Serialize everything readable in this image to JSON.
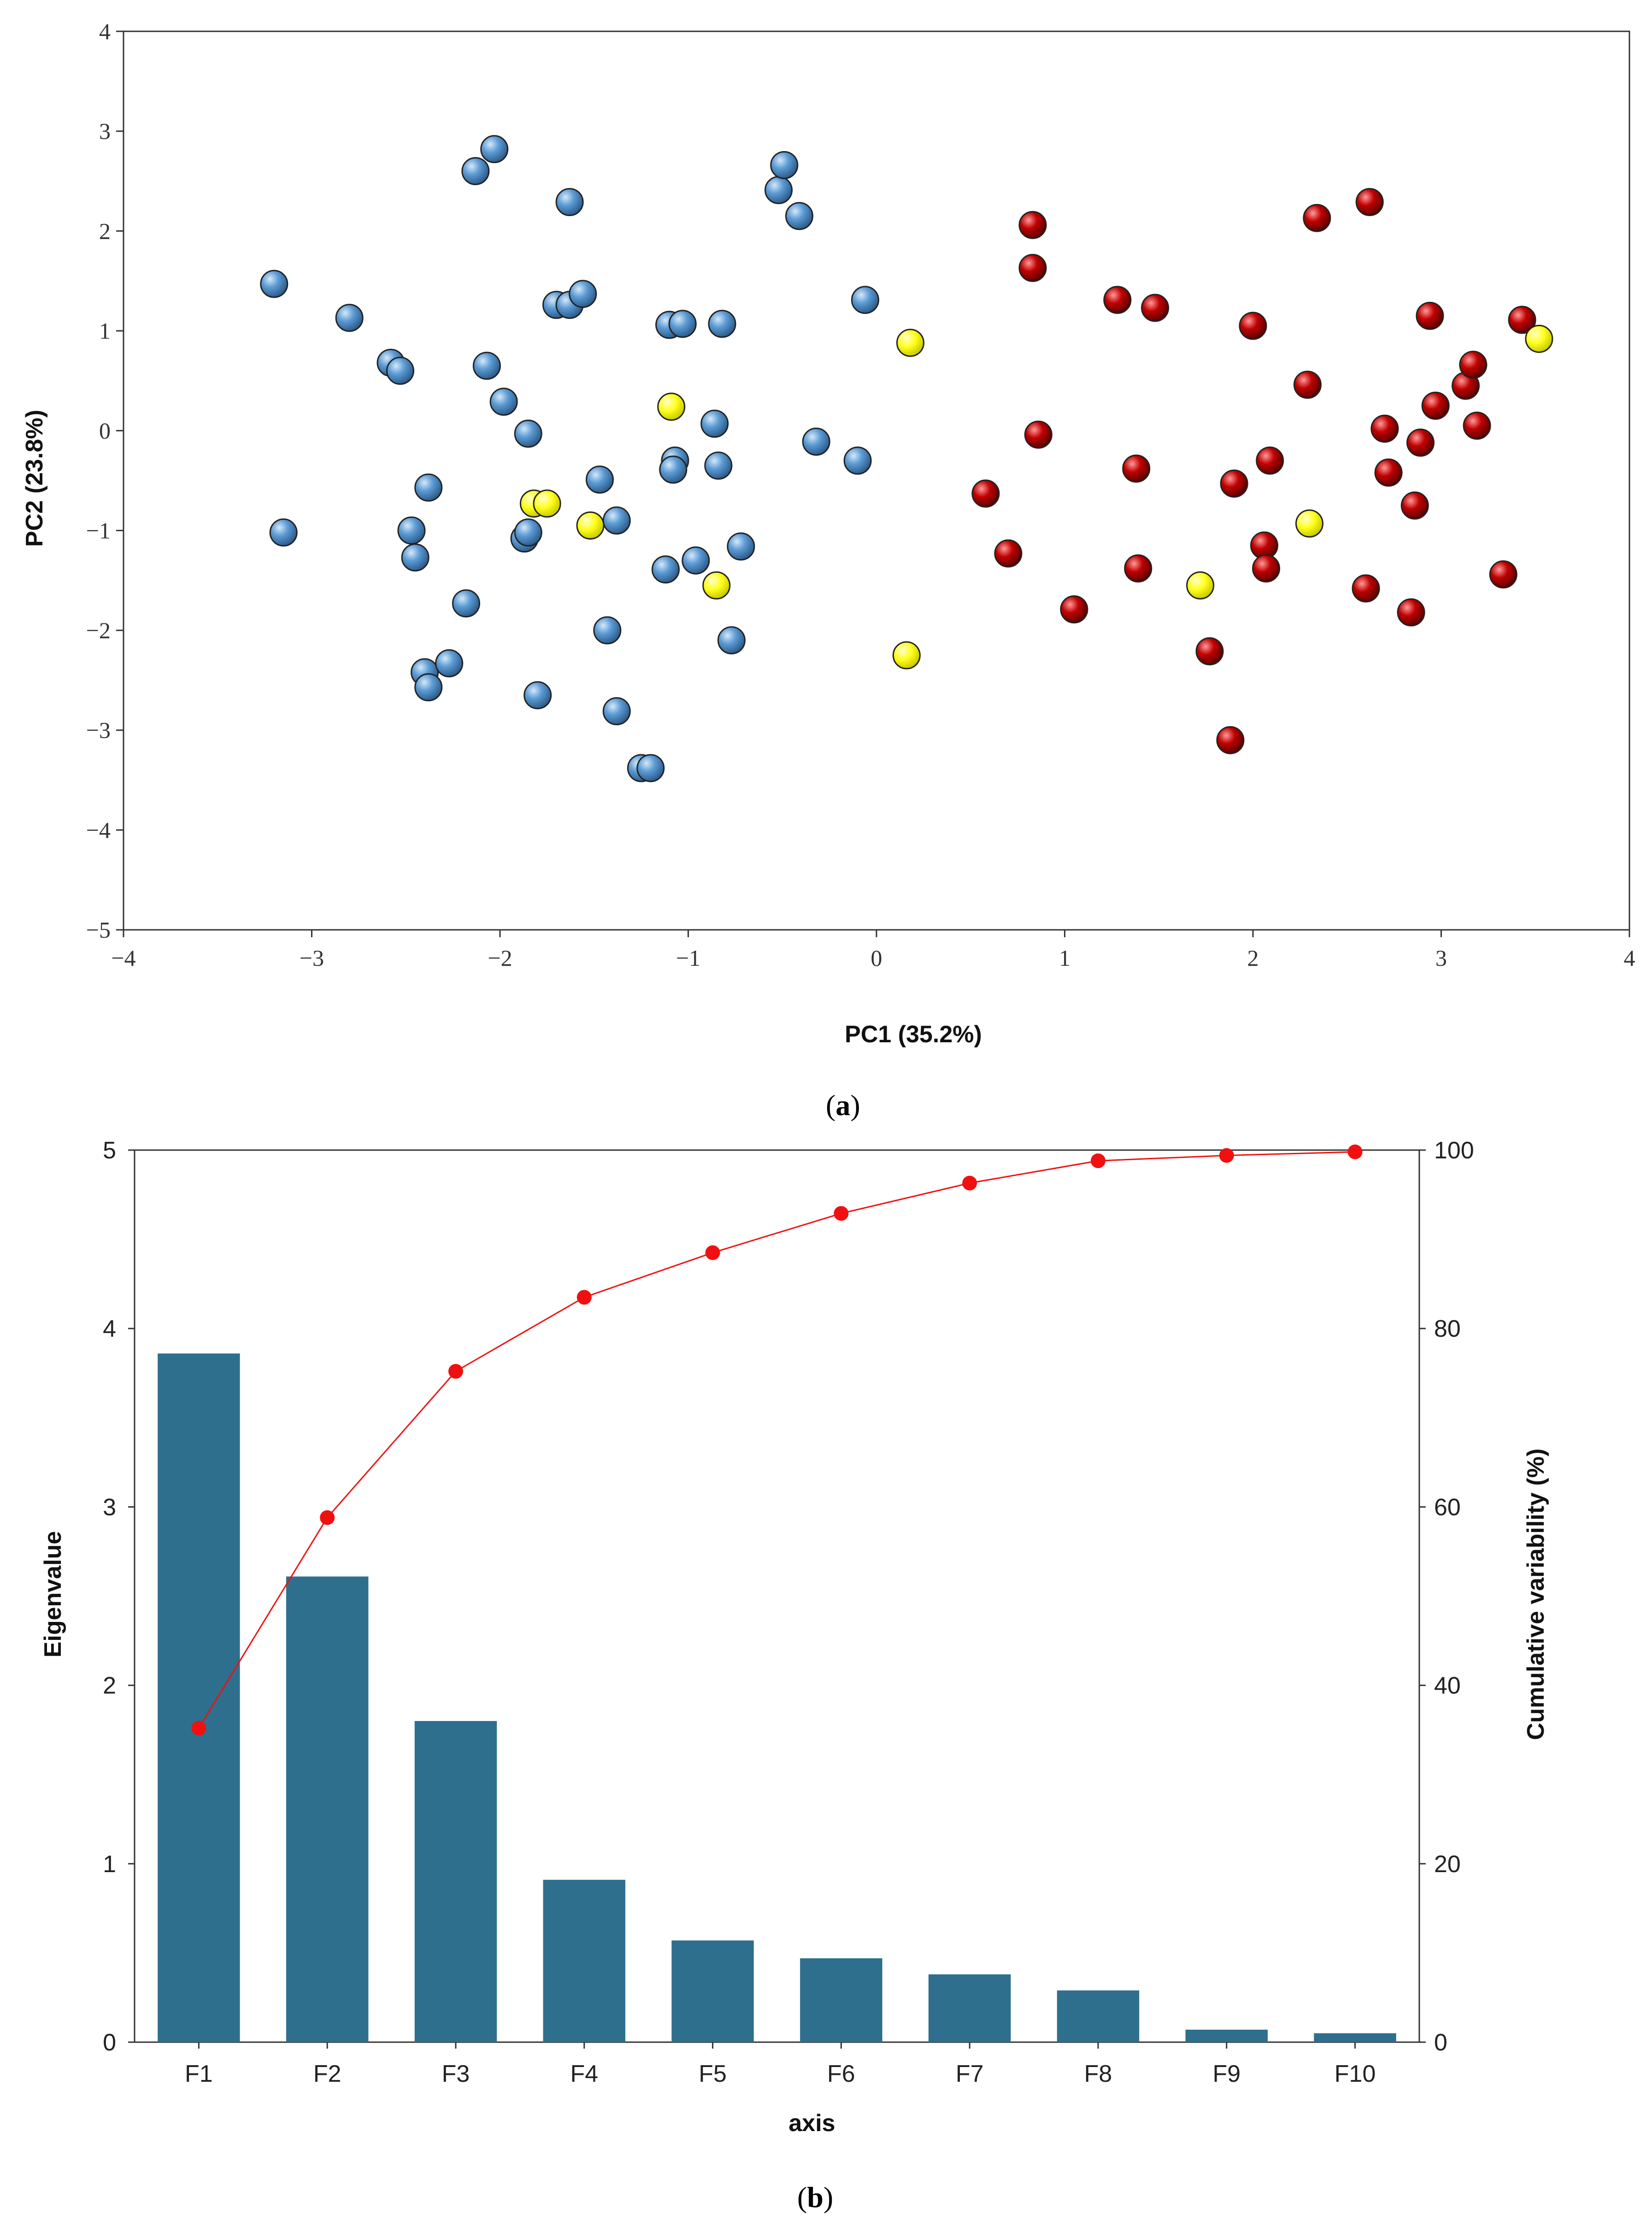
{
  "chart_data": [
    {
      "type": "scatter",
      "panel_label": "a",
      "xlabel": "PC1 (35.2%)",
      "ylabel": "PC2 (23.8%)",
      "xlim": [
        -4,
        4
      ],
      "ylim": [
        -5,
        4
      ],
      "xticks": [
        "−4",
        "−3",
        "−2",
        "−1",
        "0",
        "1",
        "2",
        "3",
        "4"
      ],
      "yticks": [
        "−5",
        "−4",
        "−3",
        "−2",
        "−1",
        "0",
        "1",
        "2",
        "3",
        "4"
      ],
      "grid": false,
      "series": [
        {
          "color": "#5B9BD5",
          "points": [
            [
              -3.2,
              1.47
            ],
            [
              -3.15,
              -1.02
            ],
            [
              -2.8,
              1.13
            ],
            [
              -2.58,
              0.68
            ],
            [
              -2.53,
              0.6
            ],
            [
              -2.47,
              -1.0
            ],
            [
              -2.45,
              -1.27
            ],
            [
              -2.38,
              -0.57
            ],
            [
              -2.4,
              -2.42
            ],
            [
              -2.38,
              -2.57
            ],
            [
              -2.27,
              -2.33
            ],
            [
              -2.18,
              -1.73
            ],
            [
              -2.13,
              2.6
            ],
            [
              -2.03,
              2.82
            ],
            [
              -2.07,
              0.65
            ],
            [
              -1.98,
              0.29
            ],
            [
              -1.85,
              -0.03
            ],
            [
              -1.87,
              -1.08
            ],
            [
              -1.85,
              -1.02
            ],
            [
              -1.8,
              -2.65
            ],
            [
              -1.7,
              1.26
            ],
            [
              -1.63,
              1.26
            ],
            [
              -1.63,
              2.29
            ],
            [
              -1.56,
              1.37
            ],
            [
              -1.47,
              -0.49
            ],
            [
              -1.43,
              -2.0
            ],
            [
              -1.38,
              -0.9
            ],
            [
              -1.38,
              -2.81
            ],
            [
              -1.25,
              -3.38
            ],
            [
              -1.2,
              -3.38
            ],
            [
              -1.12,
              -1.39
            ],
            [
              -1.1,
              1.06
            ],
            [
              -1.03,
              1.07
            ],
            [
              -1.07,
              -0.3
            ],
            [
              -1.08,
              -0.39
            ],
            [
              -0.96,
              -1.3
            ],
            [
              -0.86,
              0.07
            ],
            [
              -0.84,
              -0.35
            ],
            [
              -0.82,
              1.07
            ],
            [
              -0.77,
              -2.1
            ],
            [
              -0.72,
              -1.16
            ],
            [
              -0.52,
              2.41
            ],
            [
              -0.49,
              2.66
            ],
            [
              -0.41,
              2.15
            ],
            [
              -0.32,
              -0.11
            ],
            [
              -0.1,
              -0.3
            ],
            [
              -0.06,
              1.31
            ]
          ]
        },
        {
          "color": "#C00000",
          "points": [
            [
              0.58,
              -0.63
            ],
            [
              0.7,
              -1.23
            ],
            [
              0.83,
              2.06
            ],
            [
              0.83,
              1.63
            ],
            [
              0.86,
              -0.04
            ],
            [
              1.05,
              -1.79
            ],
            [
              1.28,
              1.31
            ],
            [
              1.38,
              -0.38
            ],
            [
              1.39,
              -1.38
            ],
            [
              1.48,
              1.23
            ],
            [
              1.77,
              -2.21
            ],
            [
              1.88,
              -3.1
            ],
            [
              1.9,
              -0.53
            ],
            [
              2.0,
              1.05
            ],
            [
              2.06,
              -1.15
            ],
            [
              2.07,
              -1.38
            ],
            [
              2.09,
              -0.3
            ],
            [
              2.29,
              0.46
            ],
            [
              2.34,
              2.13
            ],
            [
              2.6,
              -1.58
            ],
            [
              2.62,
              2.29
            ],
            [
              2.7,
              0.02
            ],
            [
              2.72,
              -0.42
            ],
            [
              2.84,
              -1.82
            ],
            [
              2.86,
              -0.75
            ],
            [
              2.89,
              -0.12
            ],
            [
              2.94,
              1.15
            ],
            [
              2.97,
              0.25
            ],
            [
              3.13,
              0.45
            ],
            [
              3.17,
              0.66
            ],
            [
              3.19,
              0.05
            ],
            [
              3.33,
              -1.44
            ],
            [
              3.43,
              1.11
            ]
          ]
        },
        {
          "color": "#FFFF1A",
          "points": [
            [
              -1.82,
              -0.73
            ],
            [
              -1.75,
              -0.73
            ],
            [
              -1.52,
              -0.95
            ],
            [
              -1.09,
              0.24
            ],
            [
              -0.85,
              -1.55
            ],
            [
              0.16,
              -2.25
            ],
            [
              0.18,
              0.88
            ],
            [
              1.72,
              -1.55
            ],
            [
              2.3,
              -0.93
            ],
            [
              3.52,
              0.92
            ]
          ]
        }
      ]
    },
    {
      "type": "bar",
      "panel_label": "b",
      "xlabel": "axis",
      "ylabel": "Eigenvalue",
      "y2label": "Cumulative variability (%)",
      "ylim": [
        0,
        5
      ],
      "y2lim": [
        0,
        100
      ],
      "yticks": [
        "0",
        "1",
        "2",
        "3",
        "4",
        "5"
      ],
      "y2ticks": [
        "0",
        "20",
        "40",
        "60",
        "80",
        "100"
      ],
      "grid": false,
      "categories": [
        "F1",
        "F2",
        "F3",
        "F4",
        "F5",
        "F6",
        "F7",
        "F8",
        "F9",
        "F10"
      ],
      "series": [
        {
          "kind": "bar",
          "axis": "left",
          "color": "#2E6F8E",
          "values": [
            3.86,
            2.61,
            1.8,
            0.91,
            0.57,
            0.47,
            0.38,
            0.29,
            0.07,
            0.05
          ]
        },
        {
          "kind": "line",
          "axis": "right",
          "color": "#F01010",
          "values": [
            35.2,
            58.8,
            75.2,
            83.5,
            88.5,
            92.9,
            96.3,
            98.8,
            99.4,
            99.8
          ]
        }
      ]
    }
  ]
}
